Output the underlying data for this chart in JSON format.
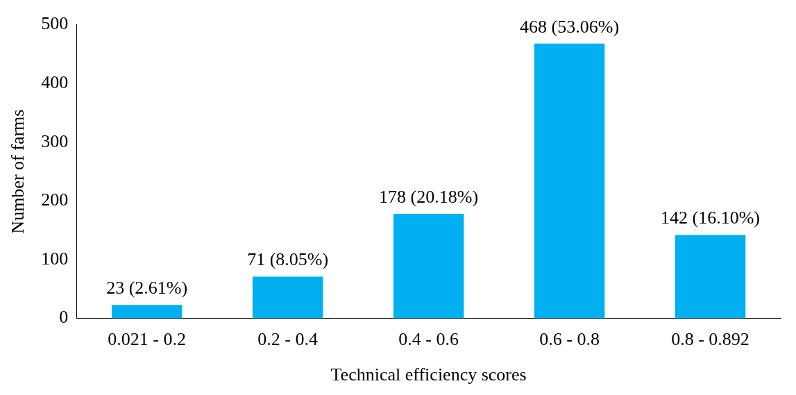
{
  "chart_data": {
    "type": "bar",
    "xlabel": "Technical efficiency scores",
    "ylabel": "Number of farms",
    "categories": [
      "0.021 - 0.2",
      "0.2 - 0.4",
      "0.4 - 0.6",
      "0.6 - 0.8",
      "0.8 - 0.892"
    ],
    "values": [
      23,
      71,
      178,
      468,
      142
    ],
    "value_labels": [
      "23 (2.61%)",
      "71 (8.05%)",
      "178 (20.18%)",
      "468 (53.06%)",
      "142 (16.10%)"
    ],
    "color": "#00b0f0",
    "ylim": [
      0,
      500
    ],
    "yticks": [
      0,
      100,
      200,
      300,
      400,
      500
    ],
    "grid": false,
    "legend": false
  }
}
